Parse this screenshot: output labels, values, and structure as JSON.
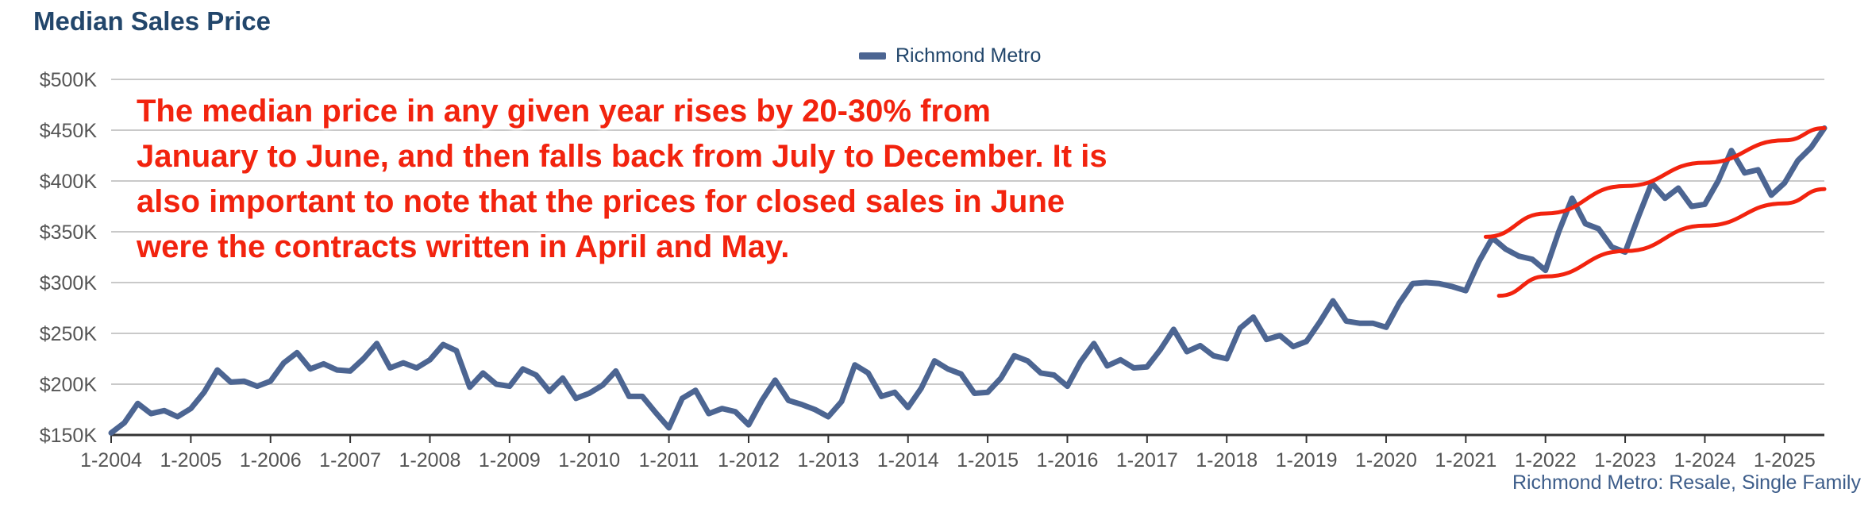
{
  "chart_data": {
    "type": "line",
    "title": "Median Sales Price",
    "xlabel": "",
    "ylabel": "",
    "ylim": [
      150000,
      500000
    ],
    "y_ticks": [
      150000,
      200000,
      250000,
      300000,
      350000,
      400000,
      450000,
      500000
    ],
    "y_tick_labels": [
      "$150K",
      "$200K",
      "$250K",
      "$300K",
      "$350K",
      "$400K",
      "$450K",
      "$500K"
    ],
    "x_tick_labels": [
      "1-2004",
      "1-2005",
      "1-2006",
      "1-2007",
      "1-2008",
      "1-2009",
      "1-2010",
      "1-2011",
      "1-2012",
      "1-2013",
      "1-2014",
      "1-2015",
      "1-2016",
      "1-2017",
      "1-2018",
      "1-2019",
      "1-2020",
      "1-2021",
      "1-2022",
      "1-2023",
      "1-2024",
      "1-2025"
    ],
    "x_start": "1-2004",
    "x_end": "7-2025",
    "grid": true,
    "legend_position": "top-center",
    "series": [
      {
        "name": "Richmond Metro",
        "color": "#4c6592",
        "points": [
          [
            "1-2004",
            152000
          ],
          [
            "3-2004",
            162000
          ],
          [
            "5-2004",
            181000
          ],
          [
            "7-2004",
            171000
          ],
          [
            "9-2004",
            174000
          ],
          [
            "11-2004",
            168000
          ],
          [
            "1-2005",
            176000
          ],
          [
            "3-2005",
            192000
          ],
          [
            "5-2005",
            214000
          ],
          [
            "7-2005",
            202000
          ],
          [
            "9-2005",
            203000
          ],
          [
            "11-2005",
            198000
          ],
          [
            "1-2006",
            203000
          ],
          [
            "3-2006",
            221000
          ],
          [
            "5-2006",
            231000
          ],
          [
            "7-2006",
            215000
          ],
          [
            "9-2006",
            220000
          ],
          [
            "11-2006",
            214000
          ],
          [
            "1-2007",
            213000
          ],
          [
            "3-2007",
            225000
          ],
          [
            "5-2007",
            240000
          ],
          [
            "7-2007",
            216000
          ],
          [
            "9-2007",
            221000
          ],
          [
            "11-2007",
            216000
          ],
          [
            "1-2008",
            224000
          ],
          [
            "3-2008",
            239000
          ],
          [
            "5-2008",
            233000
          ],
          [
            "7-2008",
            197000
          ],
          [
            "9-2008",
            211000
          ],
          [
            "11-2008",
            200000
          ],
          [
            "1-2009",
            198000
          ],
          [
            "3-2009",
            215000
          ],
          [
            "5-2009",
            209000
          ],
          [
            "7-2009",
            193000
          ],
          [
            "9-2009",
            206000
          ],
          [
            "11-2009",
            186000
          ],
          [
            "1-2010",
            191000
          ],
          [
            "3-2010",
            199000
          ],
          [
            "5-2010",
            213000
          ],
          [
            "7-2010",
            188000
          ],
          [
            "9-2010",
            188000
          ],
          [
            "11-2010",
            172000
          ],
          [
            "1-2011",
            157000
          ],
          [
            "3-2011",
            186000
          ],
          [
            "5-2011",
            194000
          ],
          [
            "7-2011",
            171000
          ],
          [
            "9-2011",
            176000
          ],
          [
            "11-2011",
            173000
          ],
          [
            "1-2012",
            160000
          ],
          [
            "3-2012",
            184000
          ],
          [
            "5-2012",
            204000
          ],
          [
            "7-2012",
            184000
          ],
          [
            "9-2012",
            180000
          ],
          [
            "11-2012",
            175000
          ],
          [
            "1-2013",
            168000
          ],
          [
            "3-2013",
            183000
          ],
          [
            "5-2013",
            219000
          ],
          [
            "7-2013",
            211000
          ],
          [
            "9-2013",
            188000
          ],
          [
            "11-2013",
            192000
          ],
          [
            "1-2014",
            177000
          ],
          [
            "3-2014",
            196000
          ],
          [
            "5-2014",
            223000
          ],
          [
            "7-2014",
            215000
          ],
          [
            "9-2014",
            210000
          ],
          [
            "11-2014",
            191000
          ],
          [
            "1-2015",
            192000
          ],
          [
            "3-2015",
            206000
          ],
          [
            "5-2015",
            228000
          ],
          [
            "7-2015",
            223000
          ],
          [
            "9-2015",
            211000
          ],
          [
            "11-2015",
            209000
          ],
          [
            "1-2016",
            198000
          ],
          [
            "3-2016",
            222000
          ],
          [
            "5-2016",
            240000
          ],
          [
            "7-2016",
            218000
          ],
          [
            "9-2016",
            224000
          ],
          [
            "11-2016",
            216000
          ],
          [
            "1-2017",
            217000
          ],
          [
            "3-2017",
            234000
          ],
          [
            "5-2017",
            254000
          ],
          [
            "7-2017",
            232000
          ],
          [
            "9-2017",
            238000
          ],
          [
            "11-2017",
            228000
          ],
          [
            "1-2018",
            225000
          ],
          [
            "3-2018",
            255000
          ],
          [
            "5-2018",
            266000
          ],
          [
            "7-2018",
            244000
          ],
          [
            "9-2018",
            248000
          ],
          [
            "11-2018",
            237000
          ],
          [
            "1-2019",
            242000
          ],
          [
            "3-2019",
            261000
          ],
          [
            "5-2019",
            282000
          ],
          [
            "7-2019",
            262000
          ],
          [
            "9-2019",
            260000
          ],
          [
            "11-2019",
            260000
          ],
          [
            "1-2020",
            256000
          ],
          [
            "3-2020",
            280000
          ],
          [
            "5-2020",
            299000
          ],
          [
            "7-2020",
            300000
          ],
          [
            "9-2020",
            299000
          ],
          [
            "11-2020",
            296000
          ],
          [
            "1-2021",
            292000
          ],
          [
            "3-2021",
            321000
          ],
          [
            "5-2021",
            344000
          ],
          [
            "7-2021",
            333000
          ],
          [
            "9-2021",
            326000
          ],
          [
            "11-2021",
            323000
          ],
          [
            "1-2022",
            312000
          ],
          [
            "3-2022",
            350000
          ],
          [
            "5-2022",
            383000
          ],
          [
            "7-2022",
            358000
          ],
          [
            "9-2022",
            353000
          ],
          [
            "11-2022",
            335000
          ],
          [
            "1-2023",
            330000
          ],
          [
            "3-2023",
            365000
          ],
          [
            "5-2023",
            398000
          ],
          [
            "7-2023",
            383000
          ],
          [
            "9-2023",
            393000
          ],
          [
            "11-2023",
            375000
          ],
          [
            "1-2024",
            377000
          ],
          [
            "3-2024",
            400000
          ],
          [
            "5-2024",
            430000
          ],
          [
            "7-2024",
            408000
          ],
          [
            "9-2024",
            411000
          ],
          [
            "11-2024",
            386000
          ],
          [
            "1-2025",
            398000
          ],
          [
            "3-2025",
            420000
          ],
          [
            "5-2025",
            433000
          ],
          [
            "7-2025",
            452000
          ]
        ]
      }
    ],
    "annotation": "The median price in any given year rises by 20-30% from January to June, and then falls back from July to December. It is also important to note that the prices for closed sales in June were the contracts written in April and May.",
    "source_note": "Richmond Metro: Resale, Single Family",
    "trend_channel": {
      "color": "#f2230e",
      "upper": [
        [
          "4-2021",
          345000
        ],
        [
          "1-2022",
          368000
        ],
        [
          "1-2023",
          395000
        ],
        [
          "1-2024",
          418000
        ],
        [
          "1-2025",
          440000
        ],
        [
          "7-2025",
          452000
        ]
      ],
      "lower": [
        [
          "6-2021",
          287000
        ],
        [
          "1-2022",
          306000
        ],
        [
          "1-2023",
          331000
        ],
        [
          "1-2024",
          356000
        ],
        [
          "1-2025",
          378000
        ],
        [
          "7-2025",
          392000
        ]
      ]
    },
    "grid_color": "#c9c9c9",
    "axis_text_color": "#555555"
  }
}
